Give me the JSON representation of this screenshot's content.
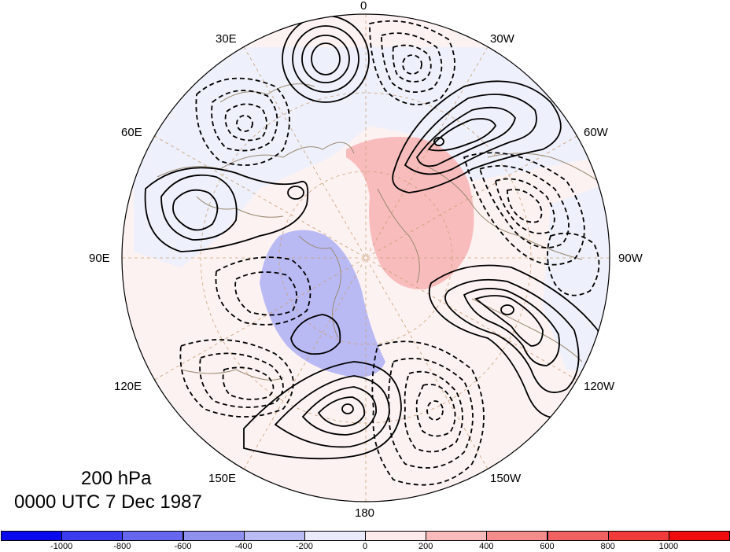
{
  "map": {
    "longitude_labels": {
      "lon_0": "0",
      "lon_30e": "30E",
      "lon_30w": "30W",
      "lon_60e": "60E",
      "lon_60w": "60W",
      "lon_90e": "90E",
      "lon_90w": "90W",
      "lon_120e": "120E",
      "lon_120w": "120W",
      "lon_150e": "150E",
      "lon_150w": "150W",
      "lon_180": "180"
    },
    "caption_level": "200 hPa",
    "caption_time": "0000 UTC 7 Dec 1987"
  },
  "colorbar": {
    "boxes": [
      {
        "color": "#0a0aee"
      },
      {
        "color": "#3c3cef"
      },
      {
        "color": "#6666ee"
      },
      {
        "color": "#9090ef"
      },
      {
        "color": "#babaf5"
      },
      {
        "color": "#eaeafb"
      },
      {
        "color": "#fdeaea"
      },
      {
        "color": "#f8baba"
      },
      {
        "color": "#f48c8c"
      },
      {
        "color": "#f06262"
      },
      {
        "color": "#ef3b3b"
      },
      {
        "color": "#ee0c0c"
      }
    ],
    "ticks": [
      "-1000",
      "-800",
      "-600",
      "-400",
      "-200",
      "0",
      "200",
      "400",
      "600",
      "800",
      "1000"
    ]
  }
}
